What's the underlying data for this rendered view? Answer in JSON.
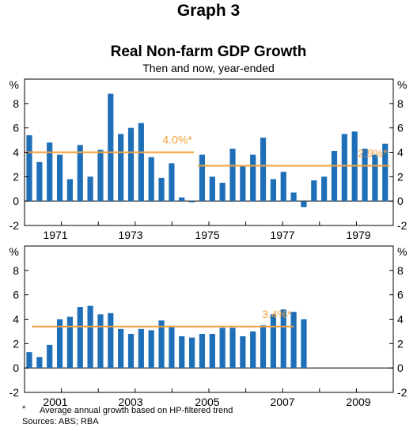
{
  "header": {
    "graph_number": "Graph 3",
    "title": "Real Non-farm GDP Growth",
    "subtitle": "Then and now, year-ended"
  },
  "colors": {
    "bar": "#1f6fb8",
    "average_line": "#f5a03c",
    "axis": "#000000",
    "grid": "#000000"
  },
  "chart_data": [
    {
      "type": "bar",
      "panel": "top",
      "y_unit_label": "%",
      "ylim": [
        -2,
        10
      ],
      "yticks": [
        -2,
        0,
        2,
        4,
        6,
        8
      ],
      "xtick_labels": [
        "1971",
        "1973",
        "1975",
        "1977",
        "1979"
      ],
      "x_range": [
        "1970",
        "1979"
      ],
      "values": [
        5.4,
        3.2,
        4.8,
        3.8,
        1.8,
        4.6,
        2.0,
        4.2,
        8.8,
        5.5,
        6.0,
        6.4,
        3.6,
        1.9,
        3.1,
        0.3,
        -0.1,
        3.8,
        2.0,
        1.5,
        4.3,
        2.9,
        3.8,
        5.2,
        1.8,
        2.4,
        0.7,
        -0.5,
        1.7,
        2.0,
        4.1,
        5.5,
        5.7,
        4.3,
        3.8,
        4.7
      ],
      "averages": [
        {
          "label": "4.0%*",
          "value": 4.0,
          "from": "1970",
          "to": "1974.6"
        },
        {
          "label": "2.9%*",
          "value": 2.9,
          "from": "1974.7",
          "to": "1979.9"
        }
      ]
    },
    {
      "type": "bar",
      "panel": "bottom",
      "y_unit_label": "%",
      "ylim": [
        -2,
        10
      ],
      "yticks": [
        -2,
        0,
        2,
        4,
        6,
        8
      ],
      "xtick_labels": [
        "2001",
        "2003",
        "2005",
        "2007",
        "2009"
      ],
      "x_range": [
        "2000",
        "2009"
      ],
      "values": [
        1.3,
        0.9,
        1.9,
        4.0,
        4.2,
        5.0,
        5.1,
        4.4,
        4.5,
        3.2,
        2.8,
        3.2,
        3.1,
        3.9,
        3.4,
        2.6,
        2.5,
        2.8,
        2.8,
        3.3,
        3.3,
        2.6,
        3.0,
        3.5,
        4.4,
        4.8,
        4.6,
        4.0
      ],
      "averages": [
        {
          "label": "3.4%*",
          "value": 3.4,
          "from": "2000.2",
          "to": "2007.3"
        }
      ]
    }
  ],
  "footnote": {
    "star": "*",
    "text": "Average annual growth based on HP-filtered trend",
    "sources": "Sources: ABS; RBA"
  }
}
